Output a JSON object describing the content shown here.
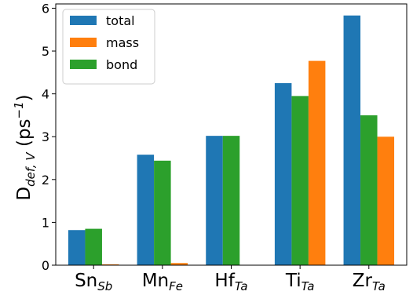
{
  "chart_data": {
    "type": "bar",
    "categories": [
      {
        "base": "Sn",
        "sub": "Sb"
      },
      {
        "base": "Mn",
        "sub": "Fe"
      },
      {
        "base": "Hf",
        "sub": "Ta"
      },
      {
        "base": "Ti",
        "sub": "Ta"
      },
      {
        "base": "Zr",
        "sub": "Ta"
      }
    ],
    "series": [
      {
        "name": "total",
        "color": "#1f77b4",
        "values": [
          0.82,
          2.58,
          3.02,
          4.25,
          5.83
        ]
      },
      {
        "name": "mass",
        "color": "#ff7f0e",
        "values": [
          0.02,
          0.05,
          null,
          4.77,
          3.0
        ]
      },
      {
        "name": "bond",
        "color": "#2ca02c",
        "values": [
          0.85,
          2.44,
          3.02,
          3.95,
          3.5
        ]
      }
    ],
    "bar_order": [
      "total",
      "bond",
      "mass"
    ],
    "ylabel": {
      "base": "D",
      "sub": "def, V",
      "unit_open": " (ps",
      "sup": "−1",
      "unit_close": ")"
    },
    "ylim": [
      0,
      6.1
    ],
    "yticks": [
      0,
      1,
      2,
      3,
      4,
      5,
      6
    ],
    "grid": false,
    "legend_position": "top-left"
  }
}
